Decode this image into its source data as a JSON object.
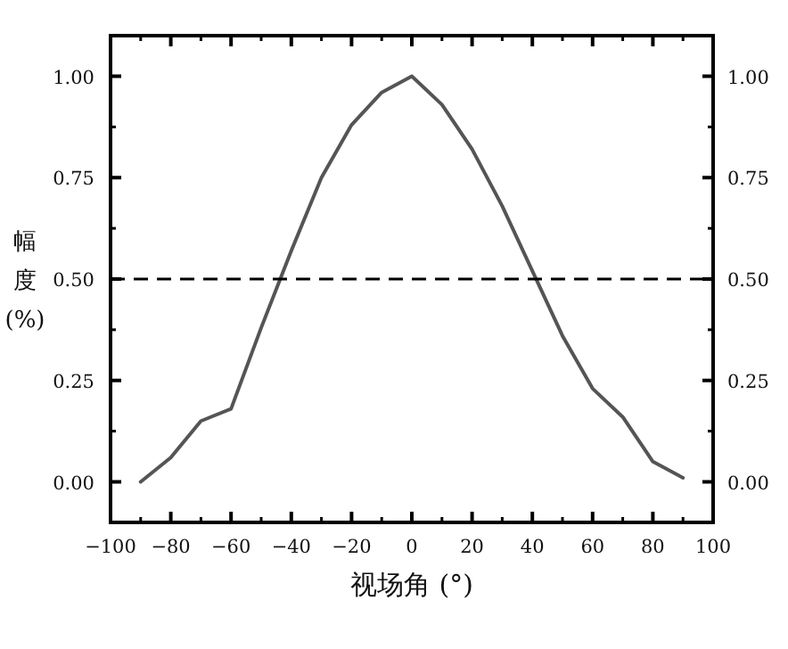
{
  "chart_data": {
    "type": "line",
    "xlabel": "视场角 (°)",
    "ylabel": "幅度 (%)",
    "x": [
      -90,
      -80,
      -70,
      -60,
      -50,
      -40,
      -30,
      -20,
      -10,
      0,
      10,
      20,
      30,
      40,
      50,
      60,
      70,
      80,
      90
    ],
    "series": [
      {
        "color": "#555555",
        "values": [
          0.0,
          0.06,
          0.15,
          0.18,
          0.38,
          0.57,
          0.75,
          0.88,
          0.96,
          1.0,
          0.93,
          0.82,
          0.68,
          0.52,
          0.36,
          0.23,
          0.16,
          0.05,
          0.01
        ]
      }
    ],
    "xlim": [
      -100,
      100
    ],
    "xticks": [
      -100,
      -80,
      -60,
      -40,
      -20,
      0,
      20,
      40,
      60,
      80,
      100
    ],
    "ylim": [
      -0.1,
      1.1
    ],
    "yticks": [
      {
        "value": 0,
        "label": "0.00"
      },
      {
        "value": 0.25,
        "label": "0.25"
      },
      {
        "value": 0.5,
        "label": "0.50"
      },
      {
        "value": 0.75,
        "label": "0.75"
      },
      {
        "value": 1,
        "label": "1.00"
      }
    ],
    "y2lim": [
      -0.1,
      1.1
    ],
    "y2ticks": [
      {
        "value": 0,
        "label": "0.00"
      },
      {
        "value": 0.25,
        "label": "0.25"
      },
      {
        "value": 0.5,
        "label": "0.50"
      },
      {
        "value": 0.75,
        "label": "0.75"
      },
      {
        "value": 1,
        "label": "1.00"
      }
    ],
    "ref_lines": [
      {
        "axis": "y",
        "value": 0.5,
        "color": "#000000",
        "line_style": "dashed"
      }
    ],
    "grid": false,
    "marker": "none",
    "line_style": "solid"
  }
}
